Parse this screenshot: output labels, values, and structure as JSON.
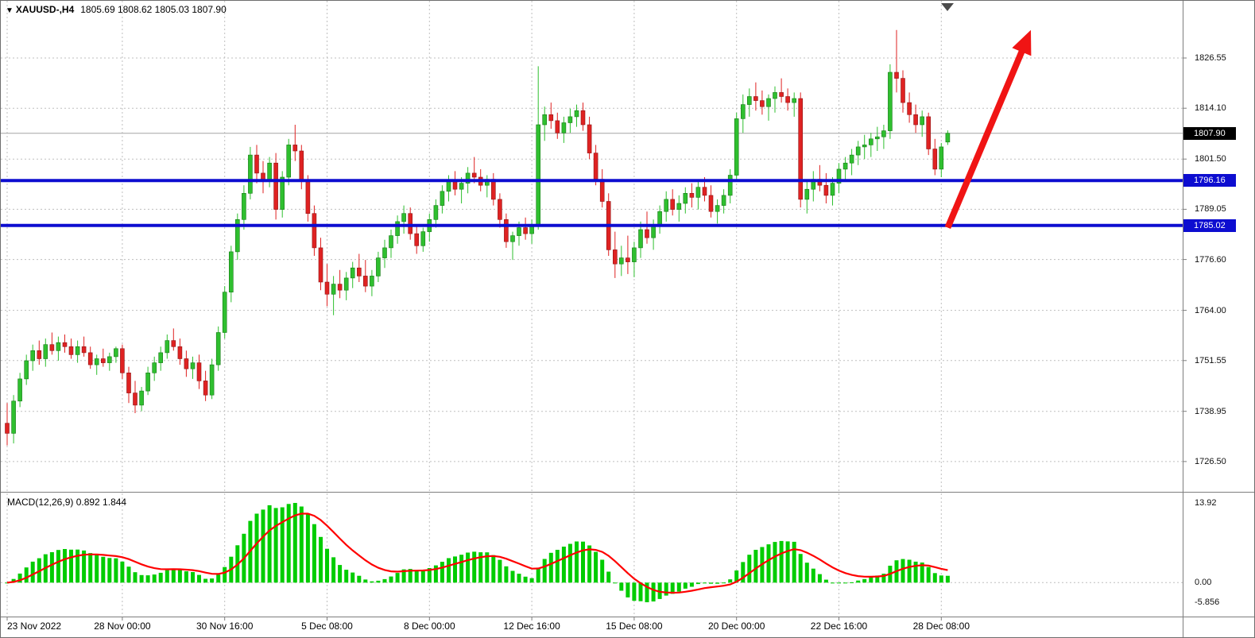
{
  "header": {
    "marker": "▼",
    "title": "XAUUSD-,H4",
    "ohlc": "1805.69 1808.62 1805.03 1807.90"
  },
  "chart_data": {
    "type": "candlestick",
    "instrument": "XAUUSD-",
    "timeframe": "H4",
    "title": "XAUUSD-,H4",
    "current_bar": {
      "open": 1805.69,
      "high": 1808.62,
      "low": 1805.03,
      "close": 1807.9
    },
    "style": {
      "up_color": "#2fbf2f",
      "down_color": "#df2222",
      "level_color": "#0d0dd0",
      "arrow_color": "#f01414",
      "macd_bar_color": "#00cc00",
      "macd_signal_color": "#ff0000",
      "current_price_tag_bg": "#000000"
    },
    "y_axis": {
      "current_price": 1807.9,
      "current_price_label": "1807.90",
      "ticks": [
        {
          "price": 1826.55,
          "label": "1826.55"
        },
        {
          "price": 1814.1,
          "label": "1814.10"
        },
        {
          "price": 1801.5,
          "label": "1801.50"
        },
        {
          "price": 1789.05,
          "label": "1789.05"
        },
        {
          "price": 1776.6,
          "label": "1776.60"
        },
        {
          "price": 1764.0,
          "label": "1764.00"
        },
        {
          "price": 1751.55,
          "label": "1751.55"
        },
        {
          "price": 1738.95,
          "label": "1738.95"
        },
        {
          "price": 1726.5,
          "label": "1726.50"
        }
      ]
    },
    "x_axis": {
      "ticks": [
        {
          "label": "23 Nov 2022",
          "index": 0
        },
        {
          "label": "28 Nov 00:00",
          "index": 18
        },
        {
          "label": "30 Nov 16:00",
          "index": 34
        },
        {
          "label": "5 Dec 08:00",
          "index": 50
        },
        {
          "label": "8 Dec 00:00",
          "index": 66
        },
        {
          "label": "12 Dec 16:00",
          "index": 82
        },
        {
          "label": "15 Dec 08:00",
          "index": 98
        },
        {
          "label": "20 Dec 00:00",
          "index": 114
        },
        {
          "label": "22 Dec 16:00",
          "index": 130
        },
        {
          "label": "28 Dec 08:00",
          "index": 146
        }
      ]
    },
    "horizontal_levels": [
      {
        "price": 1796.16,
        "label": "1796.16"
      },
      {
        "price": 1785.02,
        "label": "1785.02"
      }
    ],
    "trend_arrow": {
      "from": {
        "index": 147,
        "price": 1784.5
      },
      "to": {
        "index": 160,
        "price": 1833.5
      }
    },
    "candles": [
      [
        1736.0,
        1741.0,
        1730.5,
        1733.5
      ],
      [
        1733.5,
        1743.0,
        1731.0,
        1741.5
      ],
      [
        1741.5,
        1748.5,
        1740.0,
        1747.0
      ],
      [
        1747.0,
        1753.0,
        1745.5,
        1751.5
      ],
      [
        1751.5,
        1755.5,
        1749.0,
        1754.0
      ],
      [
        1754.0,
        1756.5,
        1750.5,
        1752.0
      ],
      [
        1752.0,
        1757.0,
        1750.0,
        1755.5
      ],
      [
        1755.5,
        1758.5,
        1753.0,
        1754.0
      ],
      [
        1754.0,
        1757.5,
        1751.5,
        1756.0
      ],
      [
        1756.0,
        1758.0,
        1753.5,
        1755.0
      ],
      [
        1755.0,
        1757.0,
        1752.0,
        1753.0
      ],
      [
        1753.0,
        1756.5,
        1751.0,
        1755.0
      ],
      [
        1755.0,
        1757.5,
        1752.5,
        1753.5
      ],
      [
        1753.5,
        1755.0,
        1749.5,
        1750.5
      ],
      [
        1750.5,
        1753.0,
        1748.0,
        1752.0
      ],
      [
        1752.0,
        1754.5,
        1750.0,
        1751.0
      ],
      [
        1751.0,
        1753.5,
        1749.0,
        1752.5
      ],
      [
        1752.5,
        1755.0,
        1751.0,
        1754.5
      ],
      [
        1754.5,
        1755.5,
        1747.0,
        1748.5
      ],
      [
        1748.5,
        1750.0,
        1741.0,
        1743.5
      ],
      [
        1743.5,
        1746.5,
        1738.5,
        1740.5
      ],
      [
        1740.5,
        1745.0,
        1739.0,
        1744.0
      ],
      [
        1744.0,
        1750.0,
        1743.0,
        1748.5
      ],
      [
        1748.5,
        1752.5,
        1746.5,
        1751.0
      ],
      [
        1751.0,
        1755.0,
        1749.0,
        1753.5
      ],
      [
        1753.5,
        1758.0,
        1752.0,
        1756.5
      ],
      [
        1756.5,
        1759.5,
        1754.0,
        1755.0
      ],
      [
        1755.0,
        1757.0,
        1750.5,
        1752.0
      ],
      [
        1752.0,
        1754.0,
        1747.5,
        1749.5
      ],
      [
        1749.5,
        1752.5,
        1747.0,
        1751.0
      ],
      [
        1751.0,
        1753.0,
        1744.5,
        1746.5
      ],
      [
        1746.5,
        1749.0,
        1741.5,
        1743.0
      ],
      [
        1743.0,
        1752.0,
        1742.0,
        1750.5
      ],
      [
        1750.5,
        1760.0,
        1749.0,
        1758.5
      ],
      [
        1758.5,
        1770.0,
        1757.0,
        1768.5
      ],
      [
        1768.5,
        1780.0,
        1766.0,
        1778.5
      ],
      [
        1778.5,
        1788.0,
        1776.5,
        1786.5
      ],
      [
        1786.5,
        1795.0,
        1784.0,
        1793.0
      ],
      [
        1793.0,
        1804.5,
        1791.5,
        1802.5
      ],
      [
        1802.5,
        1805.0,
        1795.5,
        1798.0
      ],
      [
        1798.0,
        1801.0,
        1793.0,
        1796.0
      ],
      [
        1796.0,
        1802.0,
        1794.5,
        1800.5
      ],
      [
        1800.5,
        1803.0,
        1786.5,
        1789.0
      ],
      [
        1789.0,
        1798.5,
        1787.0,
        1797.0
      ],
      [
        1797.0,
        1806.5,
        1795.0,
        1805.0
      ],
      [
        1805.0,
        1810.0,
        1801.0,
        1803.5
      ],
      [
        1803.5,
        1805.0,
        1794.0,
        1796.0
      ],
      [
        1796.0,
        1797.5,
        1786.0,
        1788.0
      ],
      [
        1788.0,
        1790.0,
        1777.5,
        1779.5
      ],
      [
        1779.5,
        1782.0,
        1769.0,
        1771.0
      ],
      [
        1771.0,
        1775.5,
        1765.0,
        1768.0
      ],
      [
        1768.0,
        1772.5,
        1762.8,
        1770.5
      ],
      [
        1770.5,
        1774.0,
        1767.0,
        1769.0
      ],
      [
        1769.0,
        1773.5,
        1766.5,
        1772.0
      ],
      [
        1772.0,
        1776.0,
        1769.5,
        1774.5
      ],
      [
        1774.5,
        1778.0,
        1771.0,
        1772.5
      ],
      [
        1772.5,
        1776.5,
        1768.5,
        1770.0
      ],
      [
        1770.0,
        1774.0,
        1767.5,
        1772.5
      ],
      [
        1772.5,
        1778.5,
        1771.0,
        1777.0
      ],
      [
        1777.0,
        1781.5,
        1774.5,
        1779.5
      ],
      [
        1779.5,
        1784.0,
        1777.0,
        1782.5
      ],
      [
        1782.5,
        1787.5,
        1780.5,
        1786.0
      ],
      [
        1786.0,
        1790.0,
        1783.0,
        1788.0
      ],
      [
        1788.0,
        1789.5,
        1781.5,
        1783.0
      ],
      [
        1783.0,
        1785.0,
        1778.0,
        1780.0
      ],
      [
        1780.0,
        1784.5,
        1778.5,
        1783.5
      ],
      [
        1783.5,
        1788.0,
        1781.0,
        1786.5
      ],
      [
        1786.5,
        1791.5,
        1784.5,
        1790.0
      ],
      [
        1790.0,
        1795.0,
        1788.0,
        1793.5
      ],
      [
        1793.5,
        1797.5,
        1791.0,
        1796.0
      ],
      [
        1796.0,
        1798.5,
        1792.5,
        1794.0
      ],
      [
        1794.0,
        1797.0,
        1790.5,
        1795.5
      ],
      [
        1795.5,
        1799.5,
        1793.0,
        1798.0
      ],
      [
        1798.0,
        1802.0,
        1795.5,
        1797.0
      ],
      [
        1797.0,
        1799.0,
        1793.5,
        1795.0
      ],
      [
        1795.0,
        1797.5,
        1792.0,
        1796.5
      ],
      [
        1796.5,
        1798.0,
        1790.0,
        1791.5
      ],
      [
        1791.5,
        1793.0,
        1784.5,
        1786.5
      ],
      [
        1786.5,
        1788.0,
        1779.5,
        1781.0
      ],
      [
        1781.0,
        1783.5,
        1776.5,
        1782.5
      ],
      [
        1782.5,
        1786.0,
        1780.0,
        1784.5
      ],
      [
        1784.5,
        1787.0,
        1781.5,
        1783.0
      ],
      [
        1783.0,
        1786.5,
        1780.5,
        1785.0
      ],
      [
        1785.0,
        1824.5,
        1784.0,
        1810.0
      ],
      [
        1810.0,
        1814.5,
        1806.0,
        1812.5
      ],
      [
        1812.5,
        1815.5,
        1809.0,
        1811.0
      ],
      [
        1811.0,
        1813.0,
        1806.5,
        1808.0
      ],
      [
        1808.0,
        1812.0,
        1805.5,
        1810.5
      ],
      [
        1810.5,
        1814.0,
        1808.0,
        1812.0
      ],
      [
        1812.0,
        1815.0,
        1809.5,
        1813.5
      ],
      [
        1813.5,
        1815.5,
        1808.5,
        1810.0
      ],
      [
        1810.0,
        1812.0,
        1801.5,
        1803.0
      ],
      [
        1803.0,
        1805.0,
        1795.0,
        1796.5
      ],
      [
        1796.5,
        1799.0,
        1789.5,
        1791.0
      ],
      [
        1791.0,
        1793.0,
        1777.5,
        1779.0
      ],
      [
        1779.0,
        1783.5,
        1772.0,
        1775.5
      ],
      [
        1775.5,
        1780.0,
        1772.5,
        1777.0
      ],
      [
        1777.0,
        1782.5,
        1773.0,
        1776.0
      ],
      [
        1776.0,
        1781.0,
        1772.2,
        1779.5
      ],
      [
        1779.5,
        1786.0,
        1777.0,
        1784.0
      ],
      [
        1784.0,
        1788.5,
        1780.5,
        1782.0
      ],
      [
        1782.0,
        1786.5,
        1779.0,
        1785.0
      ],
      [
        1785.0,
        1790.0,
        1783.0,
        1788.5
      ],
      [
        1788.5,
        1793.5,
        1786.0,
        1791.5
      ],
      [
        1791.5,
        1794.0,
        1787.5,
        1789.0
      ],
      [
        1789.0,
        1792.5,
        1786.0,
        1790.5
      ],
      [
        1790.5,
        1794.5,
        1788.0,
        1793.0
      ],
      [
        1793.0,
        1795.5,
        1789.5,
        1792.0
      ],
      [
        1792.0,
        1796.0,
        1789.0,
        1794.5
      ],
      [
        1794.5,
        1797.0,
        1791.0,
        1792.5
      ],
      [
        1792.5,
        1795.0,
        1787.0,
        1788.5
      ],
      [
        1788.5,
        1791.5,
        1785.5,
        1790.0
      ],
      [
        1790.0,
        1794.0,
        1788.0,
        1792.5
      ],
      [
        1792.5,
        1799.0,
        1790.5,
        1797.5
      ],
      [
        1797.5,
        1813.0,
        1796.0,
        1811.5
      ],
      [
        1811.5,
        1817.5,
        1808.0,
        1815.0
      ],
      [
        1815.0,
        1819.0,
        1812.0,
        1817.0
      ],
      [
        1817.0,
        1820.5,
        1813.5,
        1816.0
      ],
      [
        1816.0,
        1818.5,
        1812.5,
        1814.5
      ],
      [
        1814.5,
        1817.5,
        1811.0,
        1816.5
      ],
      [
        1816.5,
        1819.5,
        1813.0,
        1818.0
      ],
      [
        1818.0,
        1821.5,
        1815.5,
        1817.0
      ],
      [
        1817.0,
        1819.0,
        1813.5,
        1815.5
      ],
      [
        1815.5,
        1818.0,
        1812.0,
        1816.5
      ],
      [
        1816.5,
        1818.0,
        1789.5,
        1791.5
      ],
      [
        1791.5,
        1796.5,
        1788.0,
        1794.0
      ],
      [
        1794.0,
        1798.5,
        1791.0,
        1796.5
      ],
      [
        1796.5,
        1800.0,
        1793.5,
        1795.0
      ],
      [
        1795.0,
        1798.0,
        1790.5,
        1792.5
      ],
      [
        1792.5,
        1797.0,
        1790.0,
        1795.5
      ],
      [
        1795.5,
        1800.5,
        1793.0,
        1799.0
      ],
      [
        1799.0,
        1802.0,
        1796.0,
        1800.5
      ],
      [
        1800.5,
        1804.0,
        1797.5,
        1802.5
      ],
      [
        1802.5,
        1806.0,
        1800.0,
        1804.5
      ],
      [
        1804.5,
        1807.5,
        1801.5,
        1805.0
      ],
      [
        1805.0,
        1808.0,
        1802.0,
        1806.5
      ],
      [
        1806.5,
        1809.5,
        1803.5,
        1807.0
      ],
      [
        1807.0,
        1810.0,
        1804.0,
        1808.5
      ],
      [
        1808.5,
        1825.0,
        1806.5,
        1823.0
      ],
      [
        1823.0,
        1833.5,
        1818.0,
        1821.5
      ],
      [
        1821.5,
        1823.5,
        1813.0,
        1815.5
      ],
      [
        1815.5,
        1818.0,
        1810.5,
        1812.5
      ],
      [
        1812.5,
        1815.0,
        1808.0,
        1810.0
      ],
      [
        1810.0,
        1813.5,
        1807.0,
        1812.0
      ],
      [
        1812.0,
        1813.0,
        1802.5,
        1804.0
      ],
      [
        1804.0,
        1806.5,
        1797.5,
        1799.0
      ],
      [
        1799.0,
        1805.5,
        1797.0,
        1804.5
      ],
      [
        1805.7,
        1808.6,
        1805.0,
        1807.9
      ]
    ],
    "indicator": {
      "name": "MACD",
      "params": "12,26,9",
      "label": "MACD(12,26,9) 0.892 1.844",
      "current_values": [
        0.892,
        1.844
      ],
      "axis_ticks": [
        {
          "label": "13.92",
          "pos": "max"
        },
        {
          "label": "0.00",
          "pos": "zero"
        },
        {
          "label": "-5.856",
          "pos": "min"
        }
      ]
    }
  }
}
